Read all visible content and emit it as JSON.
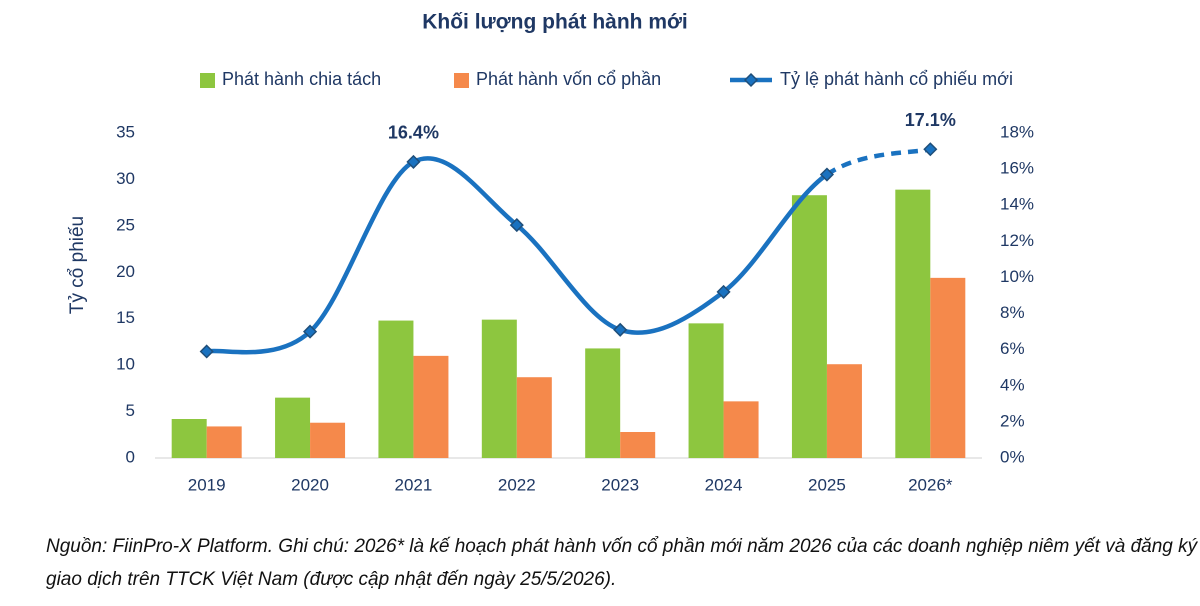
{
  "chart_data": {
    "type": "bar",
    "title": "Khối lượng phát hành mới",
    "categories": [
      "2019",
      "2020",
      "2021",
      "2022",
      "2023",
      "2024",
      "2025",
      "2026*"
    ],
    "y_label": "Tỷ cổ phiếu",
    "series": [
      {
        "name": "Phát hành chia tách",
        "type": "bar",
        "color": "#8dc63f",
        "values": [
          4.2,
          6.5,
          14.8,
          14.9,
          11.8,
          14.5,
          28.3,
          28.9
        ]
      },
      {
        "name": "Phát hành vốn cổ phần",
        "type": "bar",
        "color": "#f5894b",
        "values": [
          3.4,
          3.8,
          11.0,
          8.7,
          2.8,
          6.1,
          10.1,
          19.4
        ]
      },
      {
        "name": "Tỷ lệ phát hành cổ phiếu mới",
        "type": "line",
        "axis": "y2",
        "color": "#1a72c0",
        "marker_color": "#1f4e79",
        "dashed_last_segment": true,
        "values": [
          5.9,
          7.0,
          16.4,
          12.9,
          7.1,
          9.2,
          15.7,
          17.1
        ],
        "value_labels": [
          null,
          null,
          "16.4%",
          null,
          null,
          null,
          null,
          "17.1%"
        ]
      }
    ],
    "ylim": [
      0,
      35
    ],
    "yticks": [
      0,
      5,
      10,
      15,
      20,
      25,
      30,
      35
    ],
    "y2lim": [
      0,
      18
    ],
    "y2ticks": [
      {
        "value": 0,
        "label": "0%"
      },
      {
        "value": 2,
        "label": "2%"
      },
      {
        "value": 4,
        "label": "4%"
      },
      {
        "value": 6,
        "label": "6%"
      },
      {
        "value": 8,
        "label": "8%"
      },
      {
        "value": 10,
        "label": "10%"
      },
      {
        "value": 12,
        "label": "12%"
      },
      {
        "value": 14,
        "label": "14%"
      },
      {
        "value": 16,
        "label": "16%"
      },
      {
        "value": 18,
        "label": "18%"
      }
    ],
    "grid": false,
    "note": "Nguồn: FiinPro-X Platform. Ghi chú: 2026* là kế hoạch phát hành vốn cổ phần mới năm 2026 của các doanh nghiệp niêm yết và đăng ký giao dịch trên TTCK Việt Nam (được cập nhật đến ngày 25/5/2026)."
  }
}
